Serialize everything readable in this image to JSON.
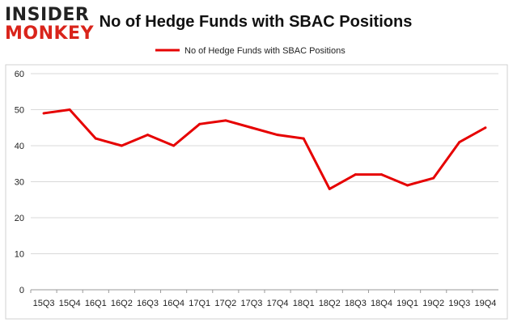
{
  "logo": {
    "line1": "INSIDER",
    "line2": "MONKEY"
  },
  "colors": {
    "series": "#e60000",
    "grid": "#d9d9d9",
    "axis": "#999999",
    "logo_red": "#d9241b"
  },
  "chart_data": {
    "type": "line",
    "title": "No of Hedge Funds with SBAC Positions",
    "legend": "top-center",
    "grid": true,
    "ylim": [
      0,
      60
    ],
    "yticks": [
      0,
      10,
      20,
      30,
      40,
      50,
      60
    ],
    "categories": [
      "15Q3",
      "15Q4",
      "16Q1",
      "16Q2",
      "16Q3",
      "16Q4",
      "17Q1",
      "17Q2",
      "17Q3",
      "17Q4",
      "18Q1",
      "18Q2",
      "18Q3",
      "18Q4",
      "19Q1",
      "19Q2",
      "19Q3",
      "19Q4"
    ],
    "series": [
      {
        "name": "No of Hedge Funds with SBAC Positions",
        "values": [
          49,
          50,
          42,
          40,
          43,
          40,
          46,
          47,
          45,
          43,
          42,
          28,
          32,
          32,
          29,
          31,
          41,
          45
        ]
      }
    ]
  }
}
